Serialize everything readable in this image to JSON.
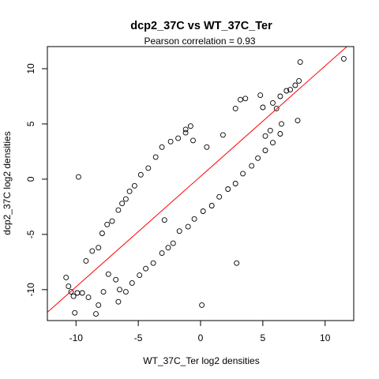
{
  "chart_data": {
    "type": "scatter",
    "title": "dcp2_37C vs WT_37C_Ter",
    "subtitle": "Pearson correlation =  0.93",
    "xlabel": "WT_37C_Ter log2 densities",
    "ylabel": "dcp2_37C log2 densities",
    "xlim": [
      -12.3,
      12.3
    ],
    "ylim": [
      -12.8,
      12.0
    ],
    "x_ticks": [
      -10,
      -5,
      0,
      5,
      10
    ],
    "y_ticks": [
      -10,
      -5,
      0,
      5,
      10
    ],
    "x_tick_labels": [
      "-10",
      "-5",
      "0",
      "5",
      "10"
    ],
    "y_tick_labels": [
      "-10",
      "-5",
      "0",
      "5",
      "10"
    ],
    "grid": false,
    "point_style": "open-circle",
    "point_color": "#000000",
    "fit_line": {
      "slope": 1.0,
      "intercept": 0.25,
      "color": "#ff0000"
    },
    "points": [
      [
        11.5,
        10.9
      ],
      [
        8.0,
        10.6
      ],
      [
        7.9,
        8.9
      ],
      [
        7.6,
        8.5
      ],
      [
        7.2,
        8.1
      ],
      [
        6.9,
        8.0
      ],
      [
        6.4,
        7.5
      ],
      [
        5.8,
        6.9
      ],
      [
        5.0,
        6.5
      ],
      [
        4.8,
        7.6
      ],
      [
        3.2,
        7.2
      ],
      [
        3.6,
        7.3
      ],
      [
        2.8,
        6.4
      ],
      [
        7.8,
        5.3
      ],
      [
        6.5,
        5.0
      ],
      [
        5.6,
        4.4
      ],
      [
        5.2,
        3.9
      ],
      [
        6.1,
        6.4
      ],
      [
        -0.8,
        4.8
      ],
      [
        -1.2,
        4.5
      ],
      [
        -0.6,
        3.5
      ],
      [
        -9.8,
        0.2
      ],
      [
        -10.2,
        -10.6
      ],
      [
        -10.1,
        -12.1
      ],
      [
        -9.9,
        -10.3
      ],
      [
        -10.8,
        -8.9
      ],
      [
        -10.6,
        -9.7
      ],
      [
        -10.4,
        -10.2
      ],
      [
        -9.5,
        -10.3
      ],
      [
        -9.0,
        -10.7
      ],
      [
        -8.4,
        -12.2
      ],
      [
        -8.2,
        -11.4
      ],
      [
        -7.8,
        -10.2
      ],
      [
        -6.5,
        -10.0
      ],
      [
        -7.4,
        -8.6
      ],
      [
        -6.8,
        -9.1
      ],
      [
        -9.2,
        -7.4
      ],
      [
        -8.7,
        -6.5
      ],
      [
        -8.2,
        -6.2
      ],
      [
        -7.9,
        -4.9
      ],
      [
        -7.5,
        -4.1
      ],
      [
        -7.1,
        -3.8
      ],
      [
        -6.6,
        -2.8
      ],
      [
        -6.3,
        -2.2
      ],
      [
        -6.0,
        -1.8
      ],
      [
        -5.7,
        -1.1
      ],
      [
        -5.3,
        -0.6
      ],
      [
        -4.8,
        0.4
      ],
      [
        -4.2,
        1.0
      ],
      [
        -3.6,
        2.0
      ],
      [
        -3.1,
        2.9
      ],
      [
        -2.4,
        3.4
      ],
      [
        -1.8,
        3.7
      ],
      [
        -1.2,
        4.2
      ],
      [
        -6.6,
        -11.1
      ],
      [
        -6.0,
        -10.2
      ],
      [
        -5.5,
        -9.4
      ],
      [
        -4.9,
        -8.7
      ],
      [
        -4.4,
        -8.1
      ],
      [
        -3.8,
        -7.6
      ],
      [
        -3.1,
        -6.7
      ],
      [
        -2.6,
        -6.2
      ],
      [
        -2.2,
        -5.8
      ],
      [
        -1.7,
        -4.7
      ],
      [
        -1.0,
        -4.3
      ],
      [
        -0.5,
        -3.6
      ],
      [
        0.2,
        -2.9
      ],
      [
        0.9,
        -2.4
      ],
      [
        1.5,
        -1.6
      ],
      [
        2.2,
        -0.9
      ],
      [
        2.8,
        -0.4
      ],
      [
        3.4,
        0.5
      ],
      [
        4.1,
        1.2
      ],
      [
        4.6,
        1.9
      ],
      [
        5.2,
        2.6
      ],
      [
        5.8,
        3.3
      ],
      [
        6.4,
        4.1
      ],
      [
        2.9,
        -7.6
      ],
      [
        0.1,
        -11.4
      ],
      [
        -2.9,
        -3.7
      ],
      [
        0.5,
        2.9
      ],
      [
        1.8,
        4.0
      ]
    ]
  }
}
